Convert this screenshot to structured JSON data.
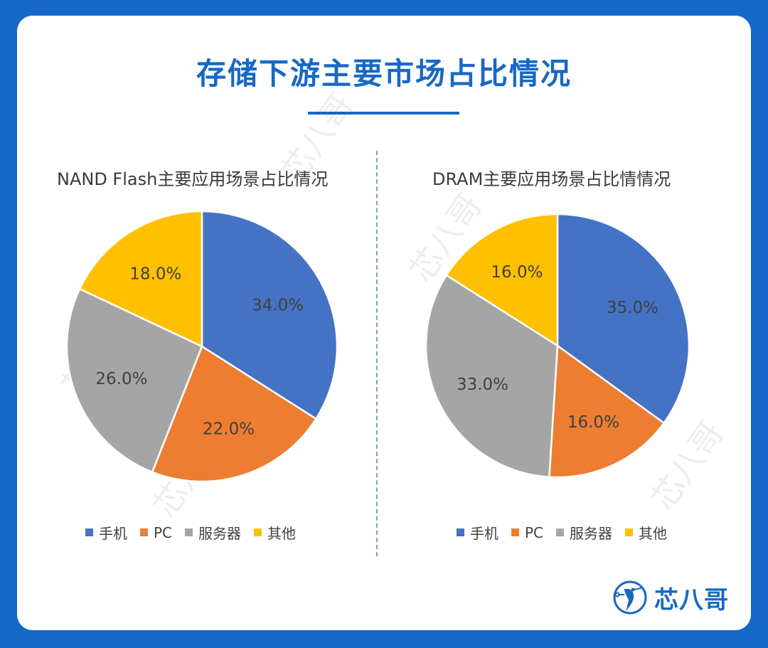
{
  "page": {
    "title": "存储下游主要市场占比情况"
  },
  "colors": {
    "background": "#1668c8",
    "accent": "#1868c4"
  },
  "watermark": {
    "text": "芯八哥"
  },
  "brand": {
    "name": "芯八哥",
    "icon": "bird-circuit-logo-icon"
  },
  "chart_data": [
    {
      "type": "pie",
      "title": "NAND Flash主要应用场景占比情况",
      "categories": [
        "手机",
        "PC",
        "服务器",
        "其他"
      ],
      "values": [
        34.0,
        22.0,
        26.0,
        18.0
      ],
      "labels": [
        "34.0%",
        "22.0%",
        "26.0%",
        "18.0%"
      ],
      "colors": [
        "#4472c4",
        "#ed7d31",
        "#a5a5a5",
        "#ffc000"
      ],
      "legend": "bottom"
    },
    {
      "type": "pie",
      "title": "DRAM主要应用场景占比情情况",
      "categories": [
        "手机",
        "PC",
        "服务器",
        "其他"
      ],
      "values": [
        35.0,
        16.0,
        33.0,
        16.0
      ],
      "labels": [
        "35.0%",
        "16.0%",
        "33.0%",
        "16.0%"
      ],
      "colors": [
        "#4472c4",
        "#ed7d31",
        "#a5a5a5",
        "#ffc000"
      ],
      "legend": "bottom"
    }
  ]
}
